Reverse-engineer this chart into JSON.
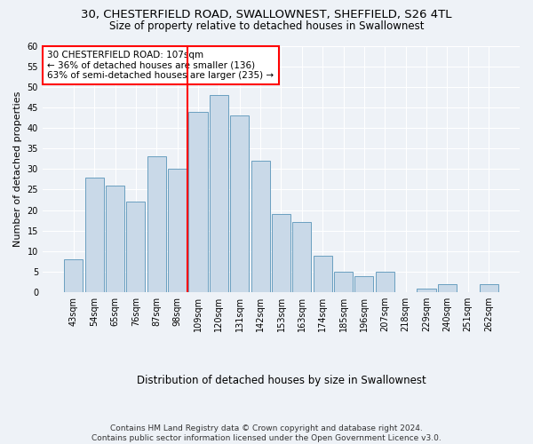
{
  "title_line1": "30, CHESTERFIELD ROAD, SWALLOWNEST, SHEFFIELD, S26 4TL",
  "title_line2": "Size of property relative to detached houses in Swallownest",
  "xlabel": "Distribution of detached houses by size in Swallownest",
  "ylabel": "Number of detached properties",
  "bar_labels": [
    "43sqm",
    "54sqm",
    "65sqm",
    "76sqm",
    "87sqm",
    "98sqm",
    "109sqm",
    "120sqm",
    "131sqm",
    "142sqm",
    "153sqm",
    "163sqm",
    "174sqm",
    "185sqm",
    "196sqm",
    "207sqm",
    "218sqm",
    "229sqm",
    "240sqm",
    "251sqm",
    "262sqm"
  ],
  "bar_values": [
    8,
    28,
    26,
    22,
    33,
    30,
    44,
    48,
    43,
    32,
    19,
    17,
    9,
    5,
    4,
    5,
    0,
    1,
    2,
    0,
    2
  ],
  "bar_color": "#c9d9e8",
  "bar_edge_color": "#6a9fc0",
  "vline_x_index": 5.5,
  "vline_color": "red",
  "annotation_text": "30 CHESTERFIELD ROAD: 107sqm\n← 36% of detached houses are smaller (136)\n63% of semi-detached houses are larger (235) →",
  "annotation_box_color": "white",
  "annotation_box_edge_color": "red",
  "ylim": [
    0,
    60
  ],
  "yticks": [
    0,
    5,
    10,
    15,
    20,
    25,
    30,
    35,
    40,
    45,
    50,
    55,
    60
  ],
  "footer_line1": "Contains HM Land Registry data © Crown copyright and database right 2024.",
  "footer_line2": "Contains public sector information licensed under the Open Government Licence v3.0.",
  "bg_color": "#eef2f7",
  "grid_color": "white",
  "title_fontsize": 9.5,
  "subtitle_fontsize": 8.5,
  "ylabel_fontsize": 8,
  "xlabel_fontsize": 8.5,
  "tick_fontsize": 7,
  "annotation_fontsize": 7.5,
  "footer_fontsize": 6.5
}
